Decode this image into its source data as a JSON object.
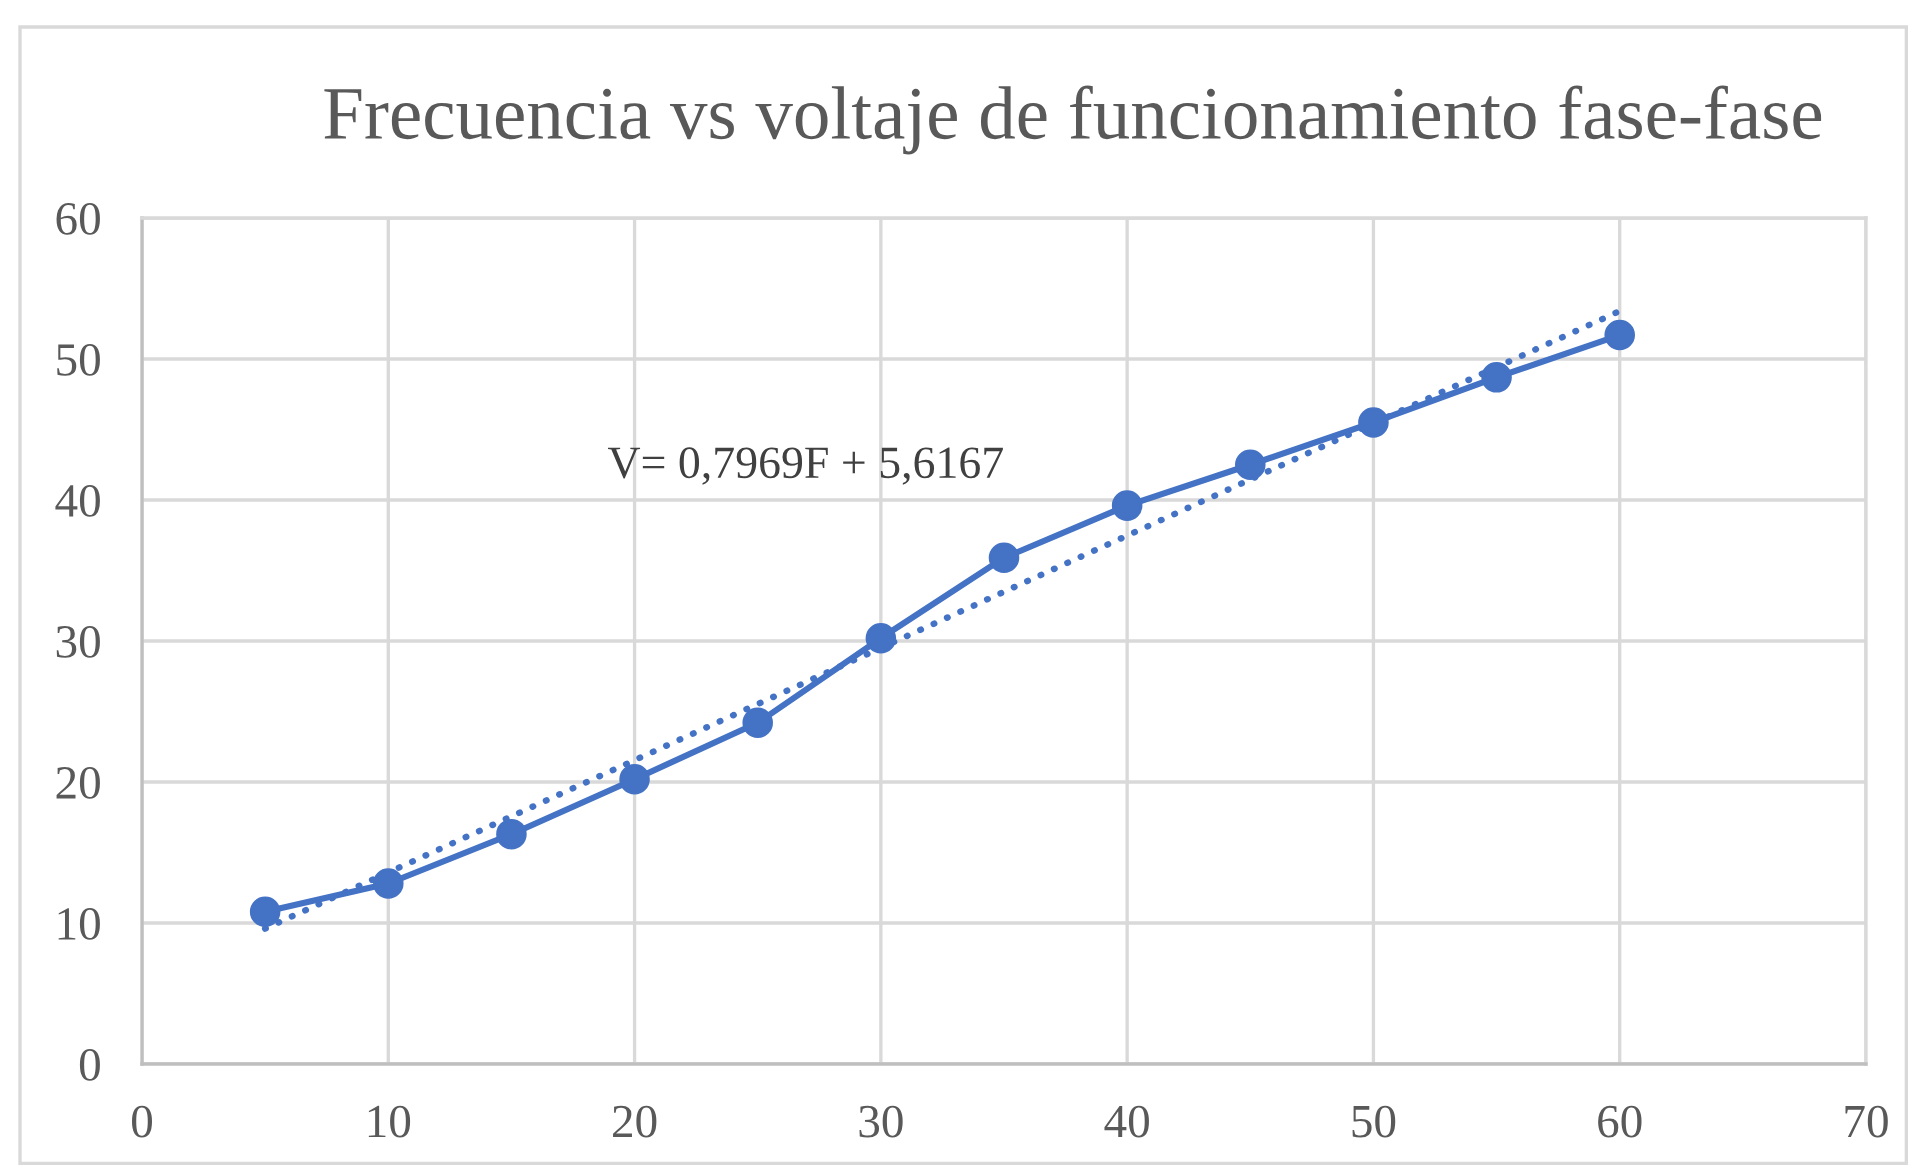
{
  "chart_data": {
    "type": "line",
    "title": "Frecuencia vs voltaje de funcionamiento fase-fase",
    "x": [
      5,
      10,
      15,
      20,
      25,
      30,
      35,
      40,
      45,
      50,
      55,
      60
    ],
    "series": [
      {
        "color": "#4472c4",
        "values": [
          10.8,
          12.8,
          16.3,
          20.2,
          24.2,
          30.2,
          35.9,
          39.6,
          42.5,
          45.5,
          48.7,
          51.7
        ],
        "marker": "circle",
        "line_style": "solid"
      },
      {
        "type": "line",
        "x": [
          5,
          60
        ],
        "values": [
          9.6,
          53.4
        ],
        "color": "#4472c4",
        "marker": "none",
        "line_style": "dotted"
      }
    ],
    "xlim": [
      0,
      70
    ],
    "xticks": [
      0,
      10,
      20,
      30,
      40,
      50,
      60,
      70
    ],
    "ylim": [
      0,
      60
    ],
    "yticks": [
      0,
      10,
      20,
      30,
      40,
      50,
      60
    ],
    "grid": true,
    "annotations": [
      "V= 0,7969F + 5,6167"
    ]
  }
}
